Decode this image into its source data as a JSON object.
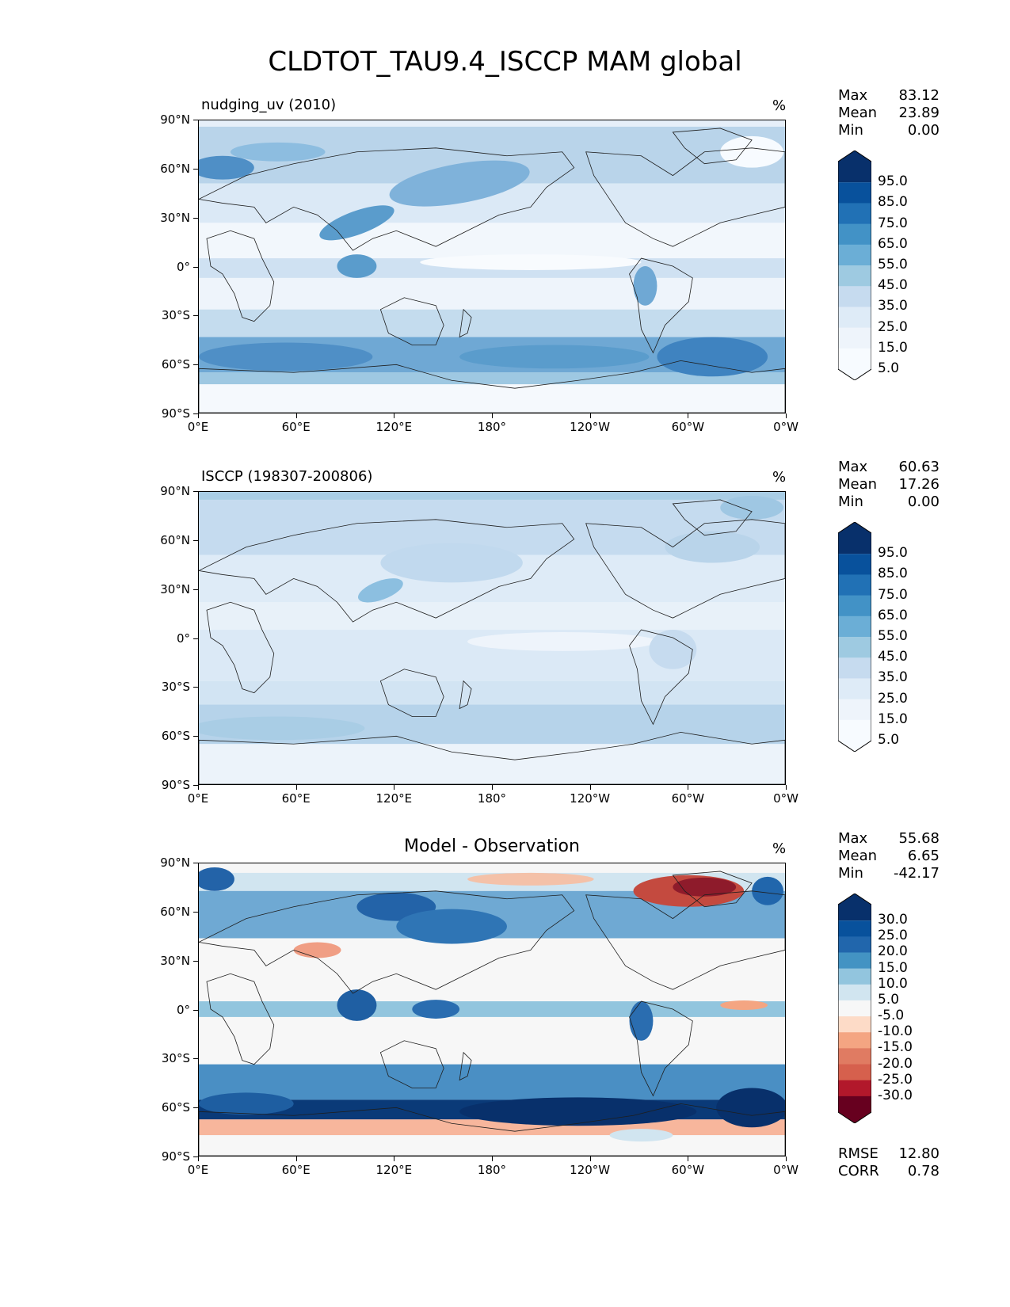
{
  "figure": {
    "title": "CLDTOT_TAU9.4_ISCCP MAM global"
  },
  "axes": {
    "lat_labels": [
      "90°N",
      "60°N",
      "30°N",
      "0°",
      "30°S",
      "60°S",
      "90°S"
    ],
    "lon_labels": [
      "0°E",
      "60°E",
      "120°E",
      "180°",
      "120°W",
      "60°W",
      "0°W"
    ]
  },
  "panels": [
    {
      "title_left": "nudging_uv (2010)",
      "title_center": "",
      "unit": "%",
      "stats": {
        "max_label": "Max",
        "max": "83.12",
        "mean_label": "Mean",
        "mean": "23.89",
        "min_label": "Min",
        "min": "0.00"
      },
      "colorbar_labels": [
        "95.0",
        "85.0",
        "75.0",
        "65.0",
        "55.0",
        "45.0",
        "35.0",
        "25.0",
        "15.0",
        "5.0"
      ],
      "colorbar_colors": [
        "#08306b",
        "#08519c",
        "#2171b5",
        "#4292c6",
        "#6baed6",
        "#9ecae1",
        "#c6dbef",
        "#deebf7",
        "#eef4fb",
        "#f7fbff"
      ],
      "field": "model"
    },
    {
      "title_left": "ISCCP (198307-200806)",
      "title_center": "",
      "unit": "%",
      "stats": {
        "max_label": "Max",
        "max": "60.63",
        "mean_label": "Mean",
        "mean": "17.26",
        "min_label": "Min",
        "min": "0.00"
      },
      "colorbar_labels": [
        "95.0",
        "85.0",
        "75.0",
        "65.0",
        "55.0",
        "45.0",
        "35.0",
        "25.0",
        "15.0",
        "5.0"
      ],
      "colorbar_colors": [
        "#08306b",
        "#08519c",
        "#2171b5",
        "#4292c6",
        "#6baed6",
        "#9ecae1",
        "#c6dbef",
        "#deebf7",
        "#eef4fb",
        "#f7fbff"
      ],
      "field": "obs"
    },
    {
      "title_left": "",
      "title_center": "Model - Observation",
      "unit": "%",
      "stats": {
        "max_label": "Max",
        "max": "55.68",
        "mean_label": "Mean",
        "mean": "6.65",
        "min_label": "Min",
        "min": "-42.17"
      },
      "colorbar_labels": [
        "30.0",
        "25.0",
        "20.0",
        "15.0",
        "10.0",
        "5.0",
        "-5.0",
        "-10.0",
        "-15.0",
        "-20.0",
        "-25.0",
        "-30.0"
      ],
      "colorbar_colors": [
        "#08306b",
        "#08519c",
        "#2166ac",
        "#4393c3",
        "#92c5de",
        "#d1e5f0",
        "#f7f7f7",
        "#fddbc7",
        "#f4a582",
        "#e07b62",
        "#d6604d",
        "#b2182b",
        "#67001f"
      ],
      "field": "diff",
      "extra": {
        "rmse_label": "RMSE",
        "rmse": "12.80",
        "corr_label": "CORR",
        "corr": "0.78"
      }
    }
  ]
}
